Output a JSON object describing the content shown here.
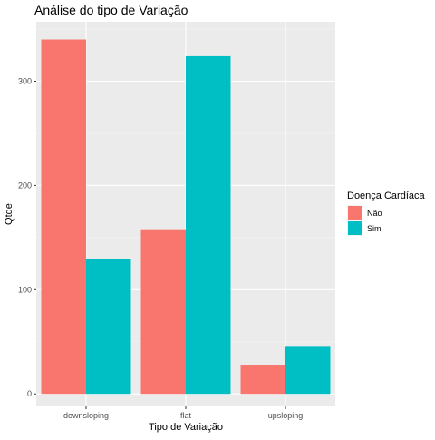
{
  "chart_data": {
    "type": "bar",
    "title": "Análise do tipo de Variação",
    "xlabel": "Tipo de Variação",
    "ylabel": "Qtde",
    "categories": [
      "downsloping",
      "flat",
      "upsloping"
    ],
    "series": [
      {
        "name": "Não",
        "color": "#F8766D",
        "values": [
          340,
          158,
          28
        ]
      },
      {
        "name": "Sim",
        "color": "#00BFC4",
        "values": [
          129,
          324,
          46
        ]
      }
    ],
    "ylim": [
      -12,
      357
    ],
    "yticks": [
      0,
      100,
      200,
      300
    ],
    "grid": true,
    "legend": {
      "title": "Doença Cardíaca",
      "position": "right"
    }
  }
}
